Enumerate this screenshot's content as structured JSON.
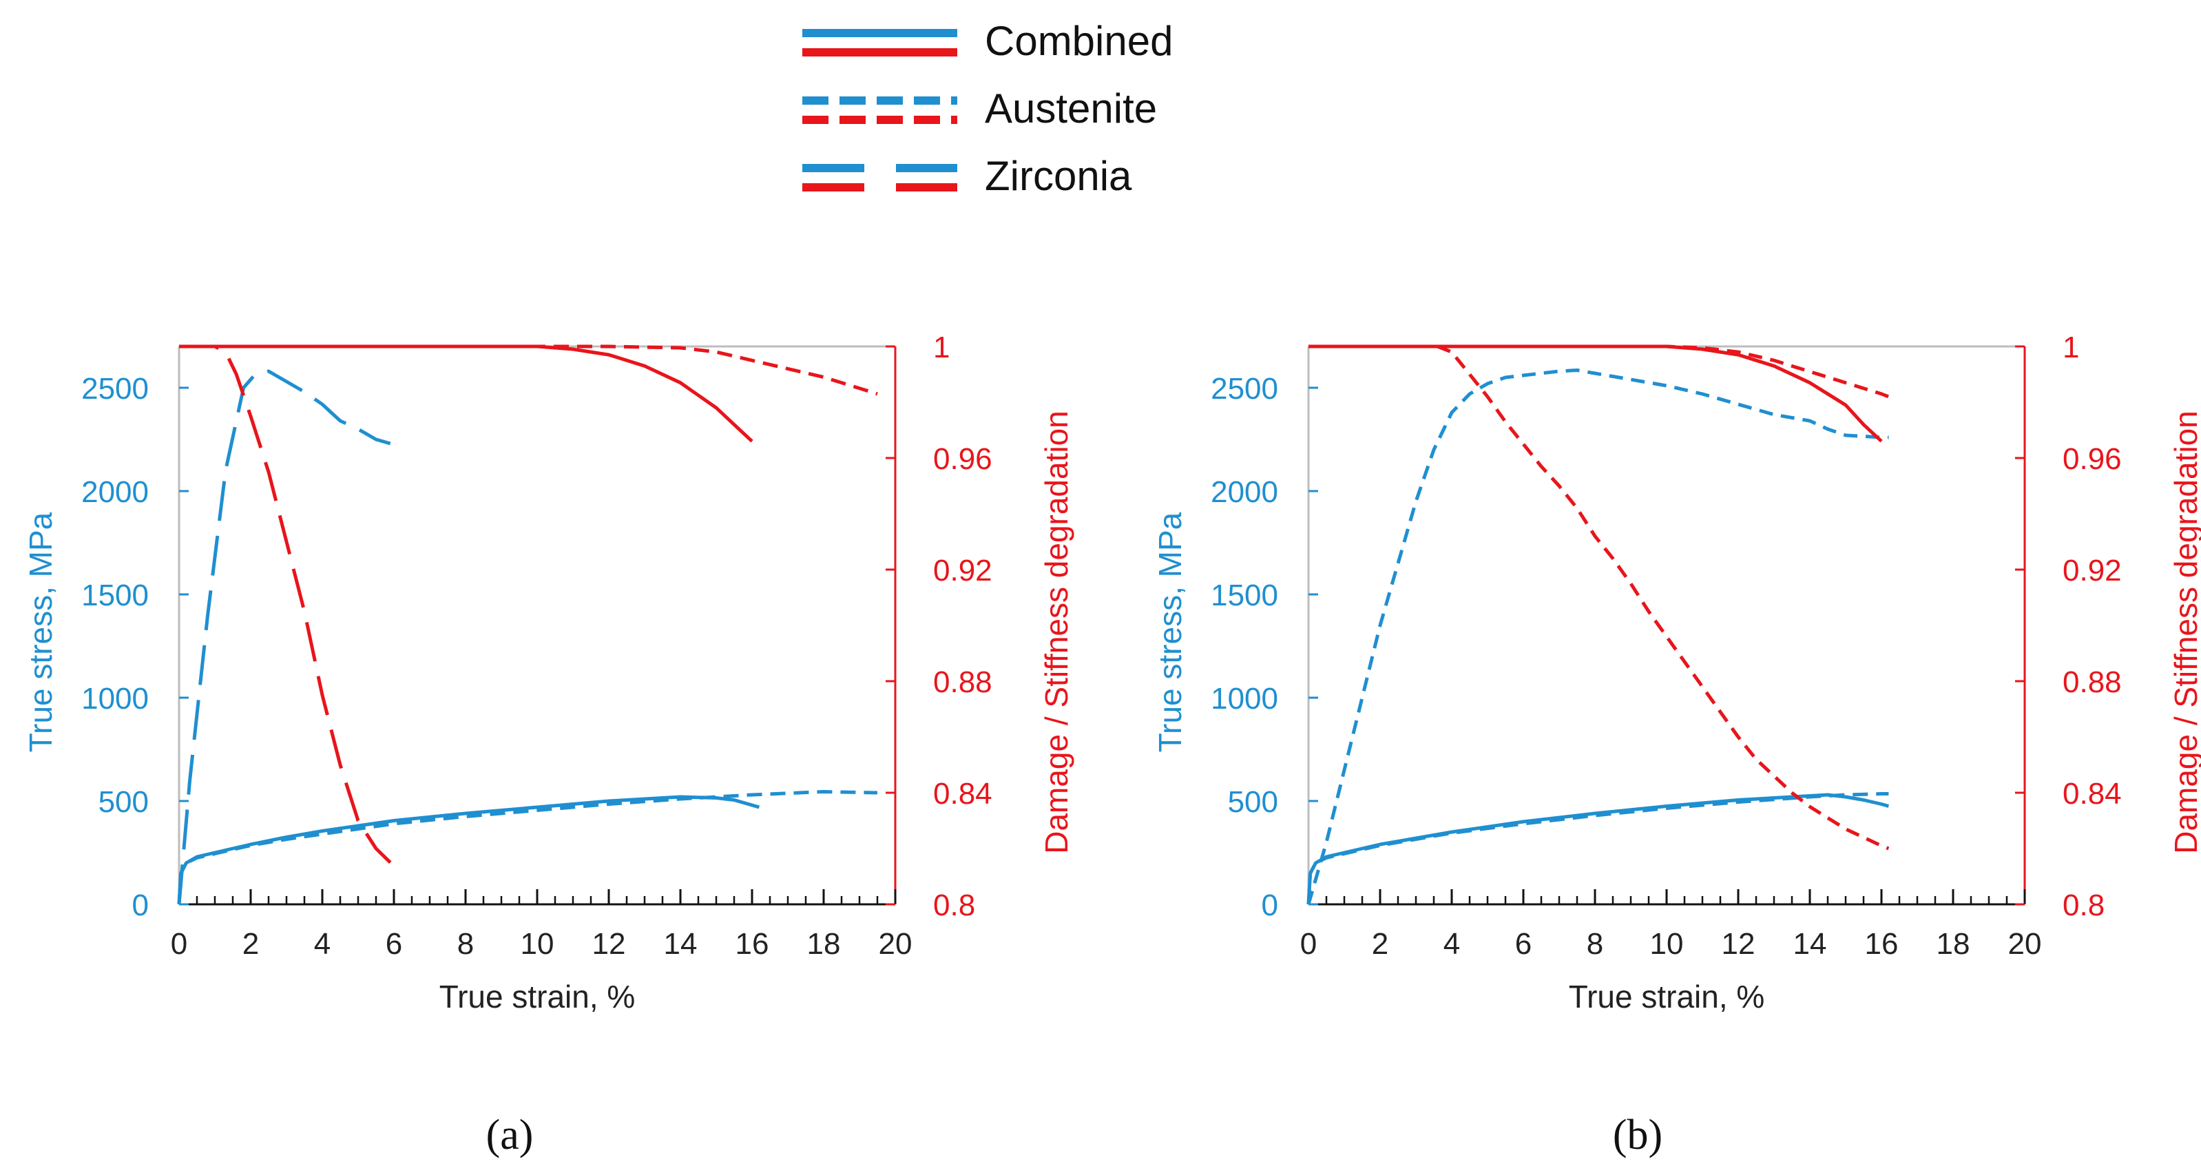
{
  "colors": {
    "stress": "#1f8fd0",
    "damage": "#e8151b",
    "frame": "#bdbdbd",
    "text": "#222222"
  },
  "legend": {
    "items": [
      {
        "label": "Combined",
        "style": "solid"
      },
      {
        "label": "Austenite",
        "style": "dashed"
      },
      {
        "label": "Zirconia",
        "style": "longdash"
      }
    ]
  },
  "chart_data": [
    {
      "type": "line",
      "panel_label": "(a)",
      "xlabel": "True strain, %",
      "ylabel": "True stress, MPa",
      "y2label": "Damage / Stiffness degradation",
      "xlim": [
        0,
        20
      ],
      "ylim": [
        0,
        2700
      ],
      "y2lim": [
        0.8,
        1.0
      ],
      "xticks": [
        0,
        2,
        4,
        6,
        8,
        10,
        12,
        14,
        16,
        18,
        20
      ],
      "yticks": [
        0,
        500,
        1000,
        1500,
        2000,
        2500
      ],
      "y2ticks": [
        0.8,
        0.84,
        0.88,
        0.92,
        0.96,
        1
      ],
      "xtick_labels": [
        "0",
        "2",
        "4",
        "6",
        "8",
        "10",
        "12",
        "14",
        "16",
        "18",
        "20"
      ],
      "ytick_labels": [
        "0",
        "500",
        "1000",
        "1500",
        "2000",
        "2500"
      ],
      "y2tick_labels": [
        "0.8",
        "0.84",
        "0.88",
        "0.92",
        "0.96",
        "1"
      ],
      "series": [
        {
          "name": "Combined stress",
          "axis": "left",
          "style": "solid",
          "x": [
            0,
            0.05,
            0.2,
            0.5,
            1,
            2,
            3,
            4,
            5,
            6,
            8,
            10,
            12,
            14,
            15,
            15.5,
            16,
            16.2
          ],
          "y": [
            0,
            150,
            200,
            230,
            250,
            290,
            325,
            355,
            380,
            405,
            440,
            470,
            500,
            520,
            515,
            505,
            480,
            470
          ]
        },
        {
          "name": "Austenite stress",
          "axis": "left",
          "style": "dashed",
          "x": [
            0,
            0.05,
            0.2,
            0.5,
            1,
            2,
            3,
            4,
            5,
            6,
            8,
            10,
            12,
            14,
            16,
            18,
            19.5
          ],
          "y": [
            0,
            150,
            200,
            225,
            245,
            285,
            315,
            340,
            365,
            390,
            425,
            455,
            485,
            510,
            530,
            545,
            540
          ]
        },
        {
          "name": "Zirconia stress",
          "axis": "left",
          "style": "longdash",
          "x": [
            0,
            0.3,
            0.8,
            1.3,
            1.8,
            2.1,
            2.5,
            3.0,
            3.5,
            4.0,
            4.5,
            5.0,
            5.5,
            5.9
          ],
          "y": [
            0,
            600,
            1400,
            2100,
            2500,
            2560,
            2580,
            2530,
            2480,
            2420,
            2340,
            2300,
            2250,
            2230
          ]
        },
        {
          "name": "Combined damage",
          "axis": "right",
          "style": "solid",
          "x": [
            0,
            8,
            10,
            11,
            12,
            13,
            14,
            15,
            15.5,
            16
          ],
          "y": [
            1.0,
            1.0,
            1.0,
            0.999,
            0.997,
            0.993,
            0.987,
            0.978,
            0.972,
            0.966
          ]
        },
        {
          "name": "Austenite damage",
          "axis": "right",
          "style": "dashed",
          "x": [
            0,
            12,
            14,
            15,
            16,
            17,
            18,
            19,
            19.5
          ],
          "y": [
            1.0,
            1.0,
            0.9995,
            0.998,
            0.995,
            0.992,
            0.989,
            0.985,
            0.983
          ]
        },
        {
          "name": "Zirconia damage",
          "axis": "right",
          "style": "longdash",
          "x": [
            0,
            1.0,
            1.3,
            1.6,
            2.0,
            2.5,
            3.0,
            3.5,
            4.0,
            4.5,
            5.0,
            5.5,
            5.9
          ],
          "y": [
            1.0,
            1.0,
            0.998,
            0.99,
            0.975,
            0.955,
            0.93,
            0.905,
            0.875,
            0.85,
            0.83,
            0.82,
            0.815
          ]
        }
      ]
    },
    {
      "type": "line",
      "panel_label": "(b)",
      "xlabel": "True strain, %",
      "ylabel": "True stress, MPa",
      "y2label": "Damage / Stiffness degradation",
      "xlim": [
        0,
        20
      ],
      "ylim": [
        0,
        2700
      ],
      "y2lim": [
        0.8,
        1.0
      ],
      "xticks": [
        0,
        2,
        4,
        6,
        8,
        10,
        12,
        14,
        16,
        18,
        20
      ],
      "yticks": [
        0,
        500,
        1000,
        1500,
        2000,
        2500
      ],
      "y2ticks": [
        0.8,
        0.84,
        0.88,
        0.92,
        0.96,
        1
      ],
      "xtick_labels": [
        "0",
        "2",
        "4",
        "6",
        "8",
        "10",
        "12",
        "14",
        "16",
        "18",
        "20"
      ],
      "ytick_labels": [
        "0",
        "500",
        "1000",
        "1500",
        "2000",
        "2500"
      ],
      "y2tick_labels": [
        "0.8",
        "0.84",
        "0.88",
        "0.92",
        "0.96",
        "1"
      ],
      "series": [
        {
          "name": "Combined stress",
          "axis": "left",
          "style": "solid",
          "x": [
            0,
            0.05,
            0.2,
            0.5,
            1,
            2,
            4,
            6,
            8,
            10,
            12,
            13,
            14,
            14.5,
            15,
            15.5,
            16,
            16.2
          ],
          "y": [
            0,
            150,
            200,
            230,
            250,
            290,
            350,
            400,
            440,
            475,
            505,
            515,
            525,
            530,
            520,
            505,
            485,
            475
          ]
        },
        {
          "name": "Austenite stress",
          "axis": "left",
          "style": "dashed",
          "x": [
            0,
            0.05,
            0.2,
            0.5,
            1,
            2,
            4,
            6,
            8,
            10,
            12,
            14,
            15,
            16,
            16.2
          ],
          "y": [
            0,
            150,
            200,
            225,
            245,
            285,
            345,
            390,
            430,
            465,
            495,
            520,
            530,
            535,
            535
          ]
        },
        {
          "name": "Zirconia stress",
          "axis": "left",
          "style": "shortdash",
          "x": [
            0,
            0.5,
            1,
            1.5,
            2,
            2.5,
            3,
            3.5,
            4,
            4.5,
            5,
            5.5,
            6,
            7,
            7.5,
            8,
            9,
            10,
            11,
            12,
            13,
            14,
            14.5,
            15,
            16,
            16.2
          ],
          "y": [
            0,
            300,
            650,
            1000,
            1350,
            1650,
            1950,
            2200,
            2380,
            2470,
            2520,
            2550,
            2560,
            2580,
            2585,
            2570,
            2540,
            2510,
            2470,
            2420,
            2370,
            2340,
            2300,
            2270,
            2260,
            2260
          ]
        },
        {
          "name": "Combined damage",
          "axis": "right",
          "style": "solid",
          "x": [
            0,
            10,
            11,
            12,
            13,
            14,
            15,
            15.5,
            16
          ],
          "y": [
            1.0,
            1.0,
            0.999,
            0.997,
            0.993,
            0.987,
            0.979,
            0.972,
            0.966
          ]
        },
        {
          "name": "Austenite damage",
          "axis": "right",
          "style": "shortdash",
          "x": [
            0,
            10,
            11,
            12,
            13,
            14,
            15,
            16,
            16.2
          ],
          "y": [
            1.0,
            1.0,
            0.9995,
            0.998,
            0.995,
            0.991,
            0.987,
            0.983,
            0.982
          ]
        },
        {
          "name": "Zirconia damage",
          "axis": "right",
          "style": "shortdash",
          "x": [
            3.6,
            4.0,
            4.5,
            5,
            5.5,
            6,
            6.5,
            7,
            7.5,
            8,
            8.5,
            9,
            9.5,
            10,
            10.5,
            11,
            11.5,
            12,
            12.5,
            13,
            13.5,
            14,
            14.5,
            15,
            15.5,
            16,
            16.2
          ],
          "y": [
            1.0,
            0.998,
            0.99,
            0.982,
            0.973,
            0.965,
            0.957,
            0.95,
            0.942,
            0.932,
            0.924,
            0.915,
            0.905,
            0.896,
            0.887,
            0.878,
            0.869,
            0.86,
            0.852,
            0.846,
            0.84,
            0.835,
            0.831,
            0.827,
            0.824,
            0.821,
            0.82
          ]
        }
      ]
    }
  ]
}
